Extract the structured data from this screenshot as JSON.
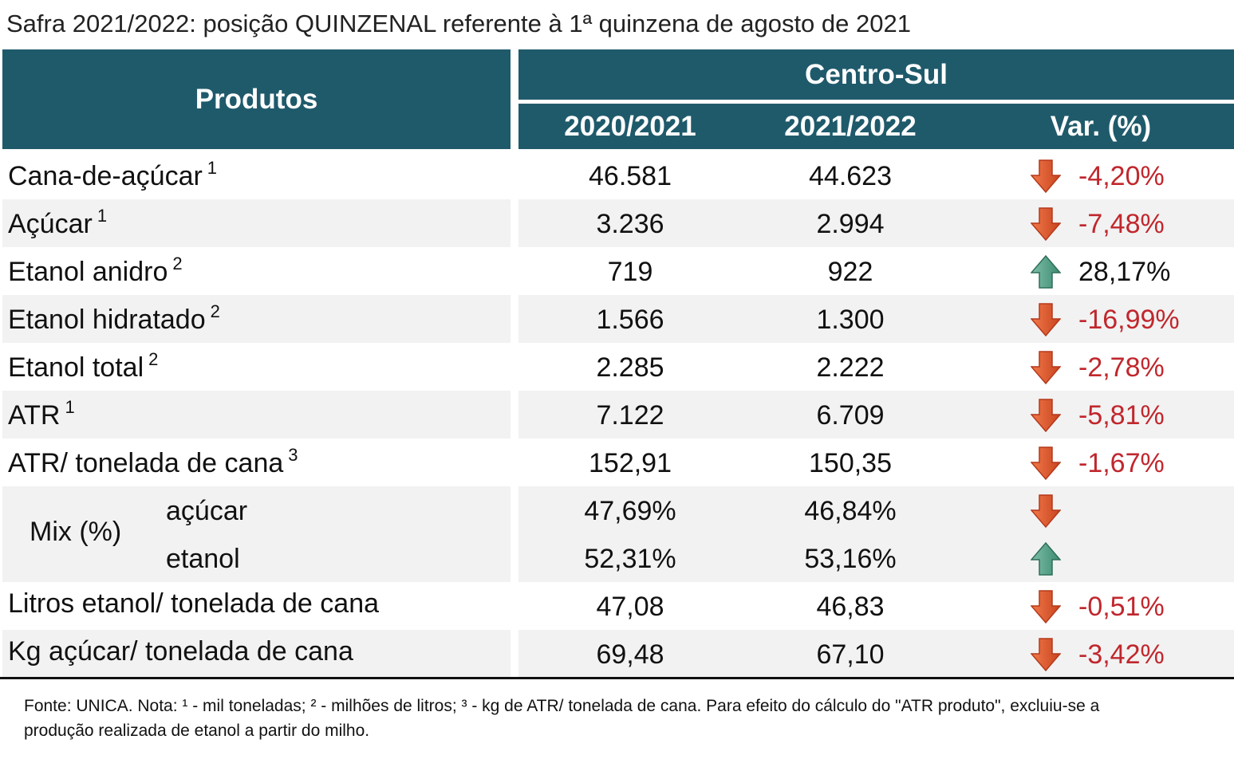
{
  "title": "Safra 2021/2022: posição QUINZENAL referente à 1ª quinzena de agosto de 2021",
  "table": {
    "header": {
      "products": "Produtos",
      "region": "Centro-Sul",
      "col1": "2020/2021",
      "col2": "2021/2022",
      "col3": "Var. (%)"
    },
    "rows": [
      {
        "product": "Cana-de-açúcar",
        "note": "1",
        "v2020": "46.581",
        "v2021": "44.623",
        "var": "-4,20%"
      },
      {
        "product": "Açúcar",
        "note": "1",
        "v2020": "3.236",
        "v2021": "2.994",
        "var": "-7,48%"
      },
      {
        "product": "Etanol anidro",
        "note": "2",
        "v2020": "719",
        "v2021": "922",
        "var": "28,17%"
      },
      {
        "product": "Etanol hidratado",
        "note": "2",
        "v2020": "1.566",
        "v2021": "1.300",
        "var": "-16,99%"
      },
      {
        "product": "Etanol total",
        "note": "2",
        "v2020": "2.285",
        "v2021": "2.222",
        "var": "-2,78%"
      },
      {
        "product": "ATR",
        "note": "1",
        "v2020": "7.122",
        "v2021": "6.709",
        "var": "-5,81%"
      },
      {
        "product": "ATR/ tonelada de cana",
        "note": "3",
        "v2020": "152,91",
        "v2021": "150,35",
        "var": "-1,67%"
      },
      {
        "product": "Mix (%)",
        "sub": [
          {
            "label": "açúcar",
            "v2020": "47,69%",
            "v2021": "46,84%"
          },
          {
            "label": "etanol",
            "v2020": "52,31%",
            "v2021": "53,16%"
          }
        ]
      },
      {
        "product": "Litros etanol/ tonelada de cana",
        "v2020": "47,08",
        "v2021": "46,83",
        "var": "-0,51%"
      },
      {
        "product": "Kg açúcar/ tonelada de cana",
        "v2020": "69,48",
        "v2021": "67,10",
        "var": "-3,42%"
      }
    ]
  },
  "footer": "Fonte: UNICA. Nota: ¹ - mil toneladas; ² - milhões de litros; ³ - kg de ATR/ tonelada de cana. Para efeito do cálculo do \"ATR produto\", excluiu-se a produção realizada de etanol a partir do milho."
}
